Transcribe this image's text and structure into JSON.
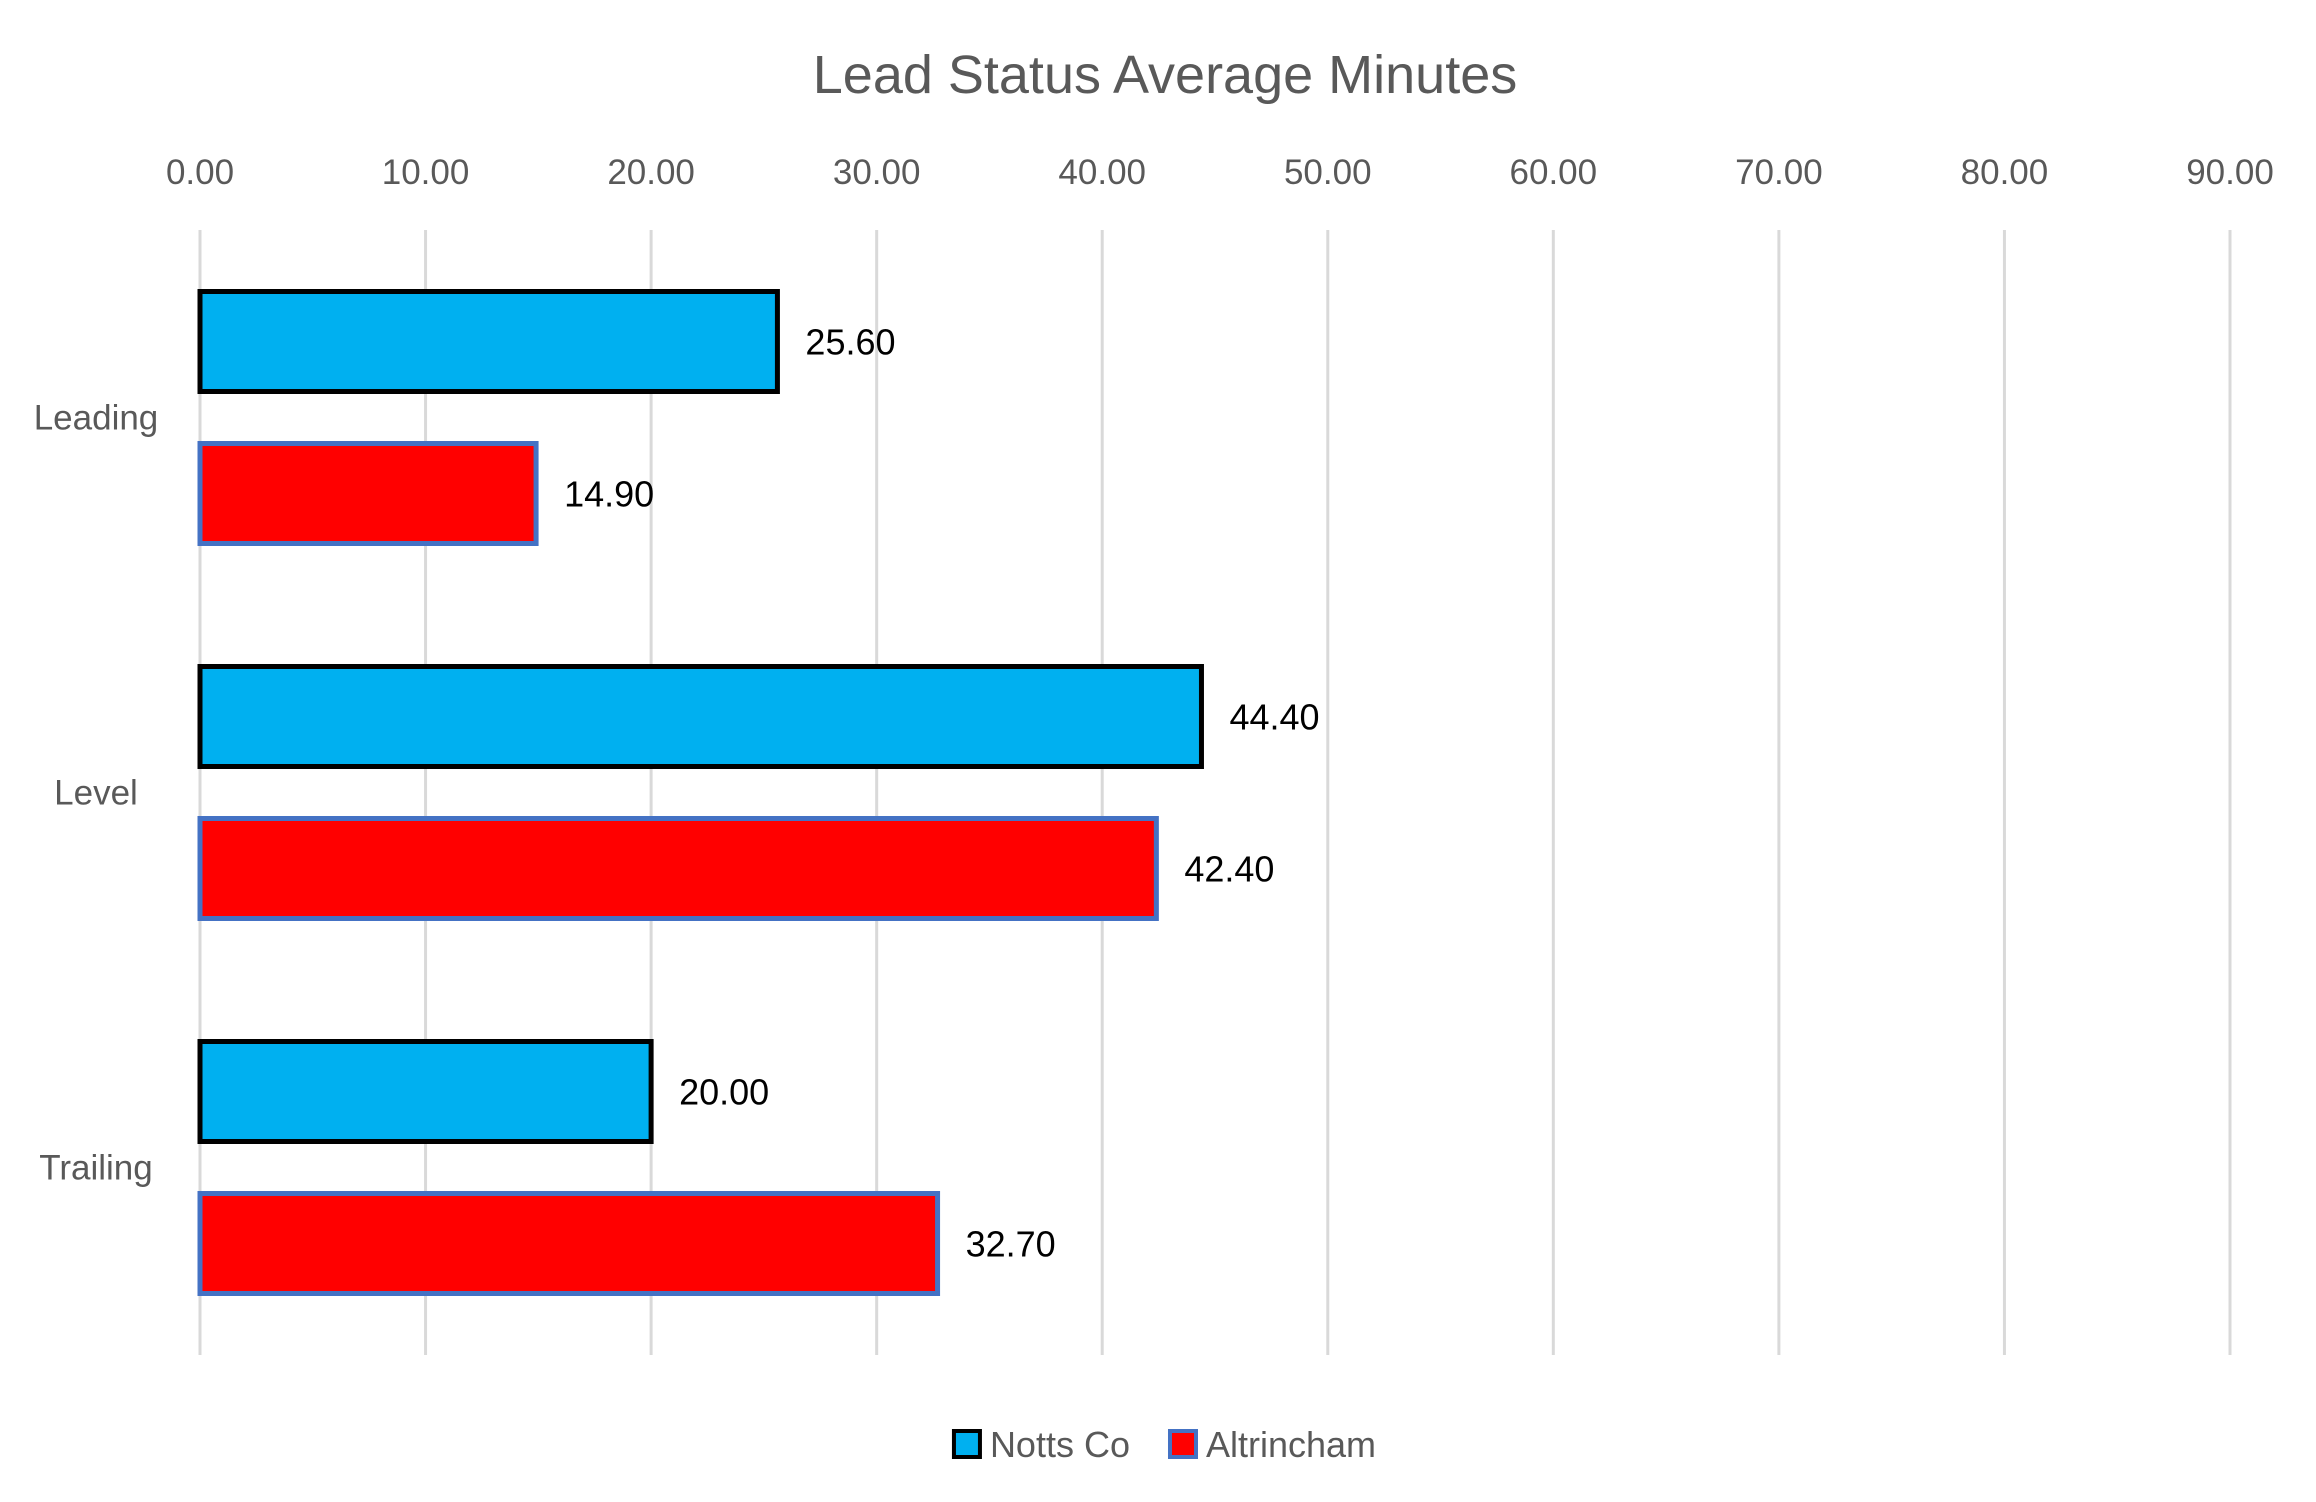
{
  "chart_data": {
    "type": "bar",
    "orientation": "horizontal",
    "title": "Lead Status Average Minutes",
    "categories": [
      "Leading",
      "Level",
      "Trailing"
    ],
    "series": [
      {
        "name": "Notts Co",
        "values": [
          25.6,
          44.4,
          20.0
        ],
        "labels": [
          "25.60",
          "44.40",
          "20.00"
        ],
        "fill": "#00B0F0",
        "stroke": "#000000"
      },
      {
        "name": "Altrincham",
        "values": [
          14.9,
          42.4,
          32.7
        ],
        "labels": [
          "14.90",
          "42.40",
          "32.70"
        ],
        "fill": "#FF0000",
        "stroke": "#4472C4"
      }
    ],
    "xlim": [
      0,
      90
    ],
    "ticks": [
      0,
      10,
      20,
      30,
      40,
      50,
      60,
      70,
      80,
      90
    ],
    "tick_labels": [
      "0.00",
      "10.00",
      "20.00",
      "30.00",
      "40.00",
      "50.00",
      "60.00",
      "70.00",
      "80.00",
      "90.00"
    ],
    "axis_position": "top",
    "grid": true,
    "legend": "bottom"
  }
}
